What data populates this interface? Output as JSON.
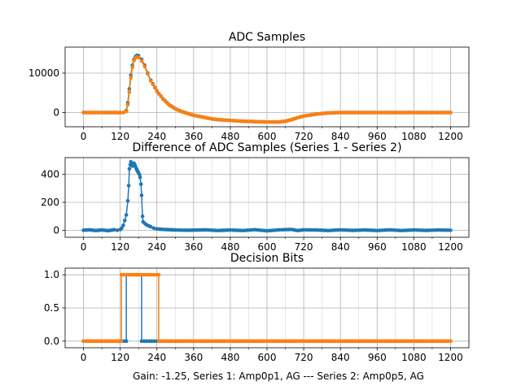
{
  "figure": {
    "footer": "Gain: -1.25, Series 1: Amp0p1, AG --- Series 2: Amp0p5, AG"
  },
  "colors": {
    "series1": "#1f77b4",
    "series2": "#ff7f0e",
    "grid": "#b0b0b0"
  },
  "chart_data": [
    {
      "type": "line",
      "title": "ADC Samples",
      "xlim": [
        -60,
        1260
      ],
      "ylim": [
        -3600,
        16600
      ],
      "xticks": [
        0,
        120,
        240,
        360,
        480,
        600,
        720,
        840,
        960,
        1080,
        1200
      ],
      "yticks": [
        0,
        10000
      ],
      "grid": true,
      "series": [
        {
          "color": "#1f77b4",
          "points": [
            [
              0,
              0
            ],
            [
              100,
              0
            ],
            [
              120,
              0
            ],
            [
              130,
              0
            ],
            [
              140,
              500
            ],
            [
              145,
              2500
            ],
            [
              150,
              6000
            ],
            [
              155,
              9500
            ],
            [
              160,
              12000
            ],
            [
              165,
              13500
            ],
            [
              170,
              14200
            ],
            [
              175,
              14500
            ],
            [
              180,
              14400
            ],
            [
              190,
              13500
            ],
            [
              200,
              12000
            ],
            [
              210,
              10000
            ],
            [
              220,
              8200
            ],
            [
              240,
              5500
            ],
            [
              260,
              3500
            ],
            [
              280,
              2000
            ],
            [
              300,
              1000
            ],
            [
              320,
              300
            ],
            [
              340,
              -200
            ],
            [
              360,
              -700
            ],
            [
              380,
              -1000
            ],
            [
              400,
              -1300
            ],
            [
              420,
              -1600
            ],
            [
              440,
              -1800
            ],
            [
              480,
              -2000
            ],
            [
              520,
              -2200
            ],
            [
              560,
              -2300
            ],
            [
              600,
              -2400
            ],
            [
              640,
              -2400
            ],
            [
              660,
              -2200
            ],
            [
              680,
              -1800
            ],
            [
              700,
              -1300
            ],
            [
              720,
              -900
            ],
            [
              760,
              -400
            ],
            [
              800,
              -100
            ],
            [
              840,
              0
            ],
            [
              900,
              0
            ],
            [
              960,
              0
            ],
            [
              1080,
              0
            ],
            [
              1200,
              0
            ]
          ]
        },
        {
          "color": "#ff7f0e",
          "points": [
            [
              0,
              0
            ],
            [
              100,
              0
            ],
            [
              120,
              0
            ],
            [
              130,
              0
            ],
            [
              140,
              300
            ],
            [
              145,
              2000
            ],
            [
              150,
              5200
            ],
            [
              155,
              8800
            ],
            [
              160,
              11500
            ],
            [
              165,
              13200
            ],
            [
              170,
              13900
            ],
            [
              175,
              14100
            ],
            [
              180,
              14000
            ],
            [
              190,
              13100
            ],
            [
              200,
              11700
            ],
            [
              210,
              9800
            ],
            [
              220,
              8000
            ],
            [
              240,
              5400
            ],
            [
              260,
              3400
            ],
            [
              280,
              1900
            ],
            [
              300,
              950
            ],
            [
              320,
              250
            ],
            [
              340,
              -250
            ],
            [
              360,
              -700
            ],
            [
              380,
              -1000
            ],
            [
              400,
              -1300
            ],
            [
              420,
              -1600
            ],
            [
              440,
              -1800
            ],
            [
              480,
              -2000
            ],
            [
              520,
              -2200
            ],
            [
              560,
              -2300
            ],
            [
              600,
              -2400
            ],
            [
              640,
              -2400
            ],
            [
              660,
              -2200
            ],
            [
              680,
              -1800
            ],
            [
              700,
              -1300
            ],
            [
              720,
              -900
            ],
            [
              760,
              -400
            ],
            [
              800,
              -100
            ],
            [
              840,
              0
            ],
            [
              900,
              0
            ],
            [
              960,
              0
            ],
            [
              1080,
              0
            ],
            [
              1200,
              0
            ]
          ]
        }
      ]
    },
    {
      "type": "line",
      "title": "Difference of ADC Samples (Series 1 - Series 2)",
      "xlim": [
        -60,
        1260
      ],
      "ylim": [
        -50,
        520
      ],
      "xticks": [
        0,
        120,
        240,
        360,
        480,
        600,
        720,
        840,
        960,
        1080,
        1200
      ],
      "yticks": [
        0,
        200,
        400
      ],
      "grid": true,
      "series": [
        {
          "color": "#1f77b4",
          "points": [
            [
              0,
              0
            ],
            [
              20,
              3
            ],
            [
              40,
              -2
            ],
            [
              60,
              2
            ],
            [
              80,
              -3
            ],
            [
              100,
              4
            ],
            [
              110,
              0
            ],
            [
              120,
              5
            ],
            [
              125,
              15
            ],
            [
              130,
              35
            ],
            [
              135,
              70
            ],
            [
              140,
              110
            ],
            [
              145,
              210
            ],
            [
              148,
              320
            ],
            [
              150,
              440
            ],
            [
              153,
              470
            ],
            [
              155,
              490
            ],
            [
              158,
              480
            ],
            [
              160,
              460
            ],
            [
              163,
              470
            ],
            [
              165,
              480
            ],
            [
              168,
              470
            ],
            [
              170,
              455
            ],
            [
              173,
              440
            ],
            [
              175,
              430
            ],
            [
              178,
              420
            ],
            [
              180,
              410
            ],
            [
              183,
              400
            ],
            [
              185,
              380
            ],
            [
              188,
              330
            ],
            [
              190,
              250
            ],
            [
              193,
              100
            ],
            [
              195,
              60
            ],
            [
              200,
              50
            ],
            [
              205,
              40
            ],
            [
              210,
              35
            ],
            [
              215,
              30
            ],
            [
              220,
              25
            ],
            [
              230,
              15
            ],
            [
              240,
              10
            ],
            [
              260,
              6
            ],
            [
              280,
              4
            ],
            [
              300,
              2
            ],
            [
              340,
              0
            ],
            [
              400,
              3
            ],
            [
              440,
              -2
            ],
            [
              480,
              2
            ],
            [
              520,
              -2
            ],
            [
              560,
              4
            ],
            [
              600,
              -4
            ],
            [
              640,
              3
            ],
            [
              680,
              6
            ],
            [
              700,
              -2
            ],
            [
              720,
              3
            ],
            [
              760,
              2
            ],
            [
              800,
              -2
            ],
            [
              840,
              3
            ],
            [
              880,
              -1
            ],
            [
              920,
              2
            ],
            [
              960,
              -2
            ],
            [
              1000,
              3
            ],
            [
              1040,
              -2
            ],
            [
              1080,
              2
            ],
            [
              1120,
              -1
            ],
            [
              1160,
              2
            ],
            [
              1200,
              0
            ]
          ]
        }
      ]
    },
    {
      "type": "line",
      "title": "Decision Bits",
      "xlim": [
        -60,
        1260
      ],
      "ylim": [
        -0.1,
        1.1
      ],
      "xticks": [
        0,
        120,
        240,
        360,
        480,
        600,
        720,
        840,
        960,
        1080,
        1200
      ],
      "yticks": [
        0.0,
        0.5,
        1.0
      ],
      "ytick_labels": [
        "0.0",
        "0.5",
        "1.0"
      ],
      "grid": true,
      "series": [
        {
          "color": "#1f77b4",
          "points": [
            [
              0,
              0
            ],
            [
              140,
              0
            ],
            [
              140,
              1
            ],
            [
              190,
              1
            ],
            [
              190,
              0
            ],
            [
              1200,
              0
            ]
          ]
        },
        {
          "color": "#ff7f0e",
          "points": [
            [
              0,
              0
            ],
            [
              124,
              0
            ],
            [
              124,
              1
            ],
            [
              246,
              1
            ],
            [
              246,
              0
            ],
            [
              1200,
              0
            ]
          ]
        }
      ]
    }
  ]
}
